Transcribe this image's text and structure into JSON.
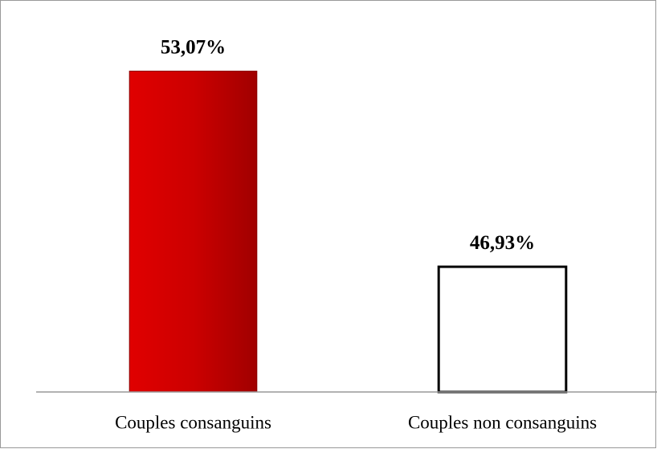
{
  "chart_data": {
    "type": "bar",
    "categories": [
      "Couples consanguins",
      "Couples non consanguins"
    ],
    "values": [
      53.07,
      46.93
    ],
    "value_labels": [
      "53,07%",
      "46,93%"
    ],
    "colors": [
      "#cc0000",
      "#ffffff"
    ],
    "ylim": [
      43,
      55
    ]
  }
}
